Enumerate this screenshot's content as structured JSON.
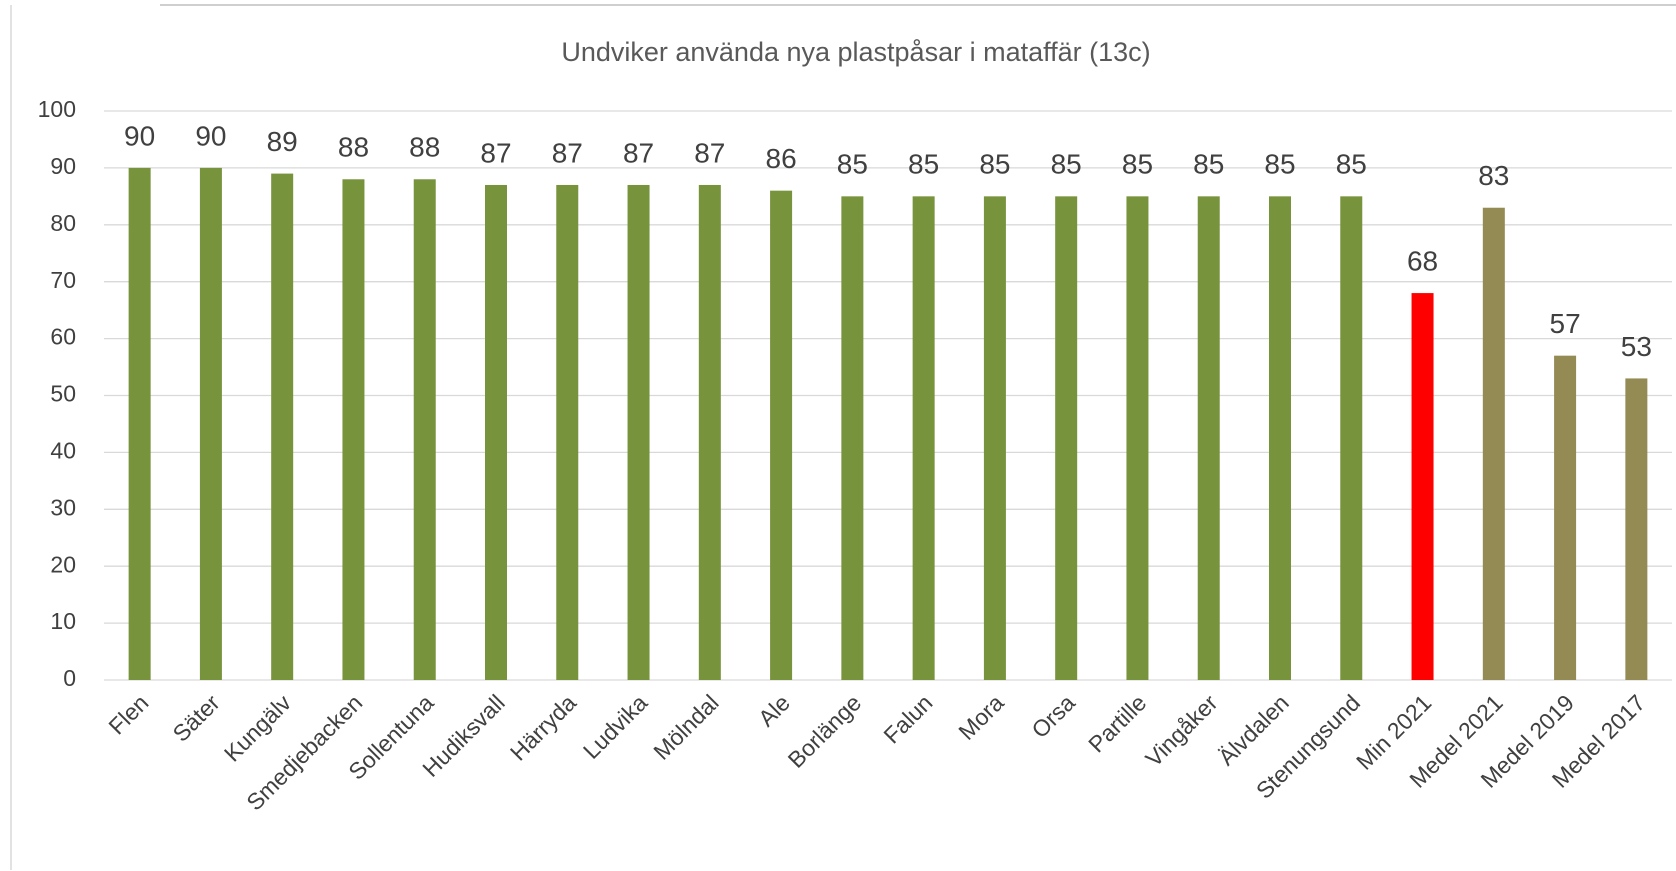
{
  "chart_data": {
    "type": "bar",
    "title": "Undviker använda nya plastpåsar i mataffär (13c)",
    "categories": [
      "Flen",
      "Säter",
      "Kungälv",
      "Smedjebacken",
      "Sollentuna",
      "Hudiksvall",
      "Härryda",
      "Ludvika",
      "Mölndal",
      "Ale",
      "Borlänge",
      "Falun",
      "Mora",
      "Orsa",
      "Partille",
      "Vingåker",
      "Älvdalen",
      "Stenungsund",
      "Min 2021",
      "Medel 2021",
      "Medel 2019",
      "Medel 2017"
    ],
    "values": [
      90,
      90,
      89,
      88,
      88,
      87,
      87,
      87,
      87,
      86,
      85,
      85,
      85,
      85,
      85,
      85,
      85,
      85,
      68,
      83,
      57,
      53
    ],
    "colors": [
      "#77933c",
      "#77933c",
      "#77933c",
      "#77933c",
      "#77933c",
      "#77933c",
      "#77933c",
      "#77933c",
      "#77933c",
      "#77933c",
      "#77933c",
      "#77933c",
      "#77933c",
      "#77933c",
      "#77933c",
      "#77933c",
      "#77933c",
      "#77933c",
      "#ff0000",
      "#948a54",
      "#948a54",
      "#948a54"
    ],
    "ylim": [
      0,
      100
    ],
    "yticks": [
      0,
      10,
      20,
      30,
      40,
      50,
      60,
      70,
      80,
      90,
      100
    ],
    "grid": true
  }
}
